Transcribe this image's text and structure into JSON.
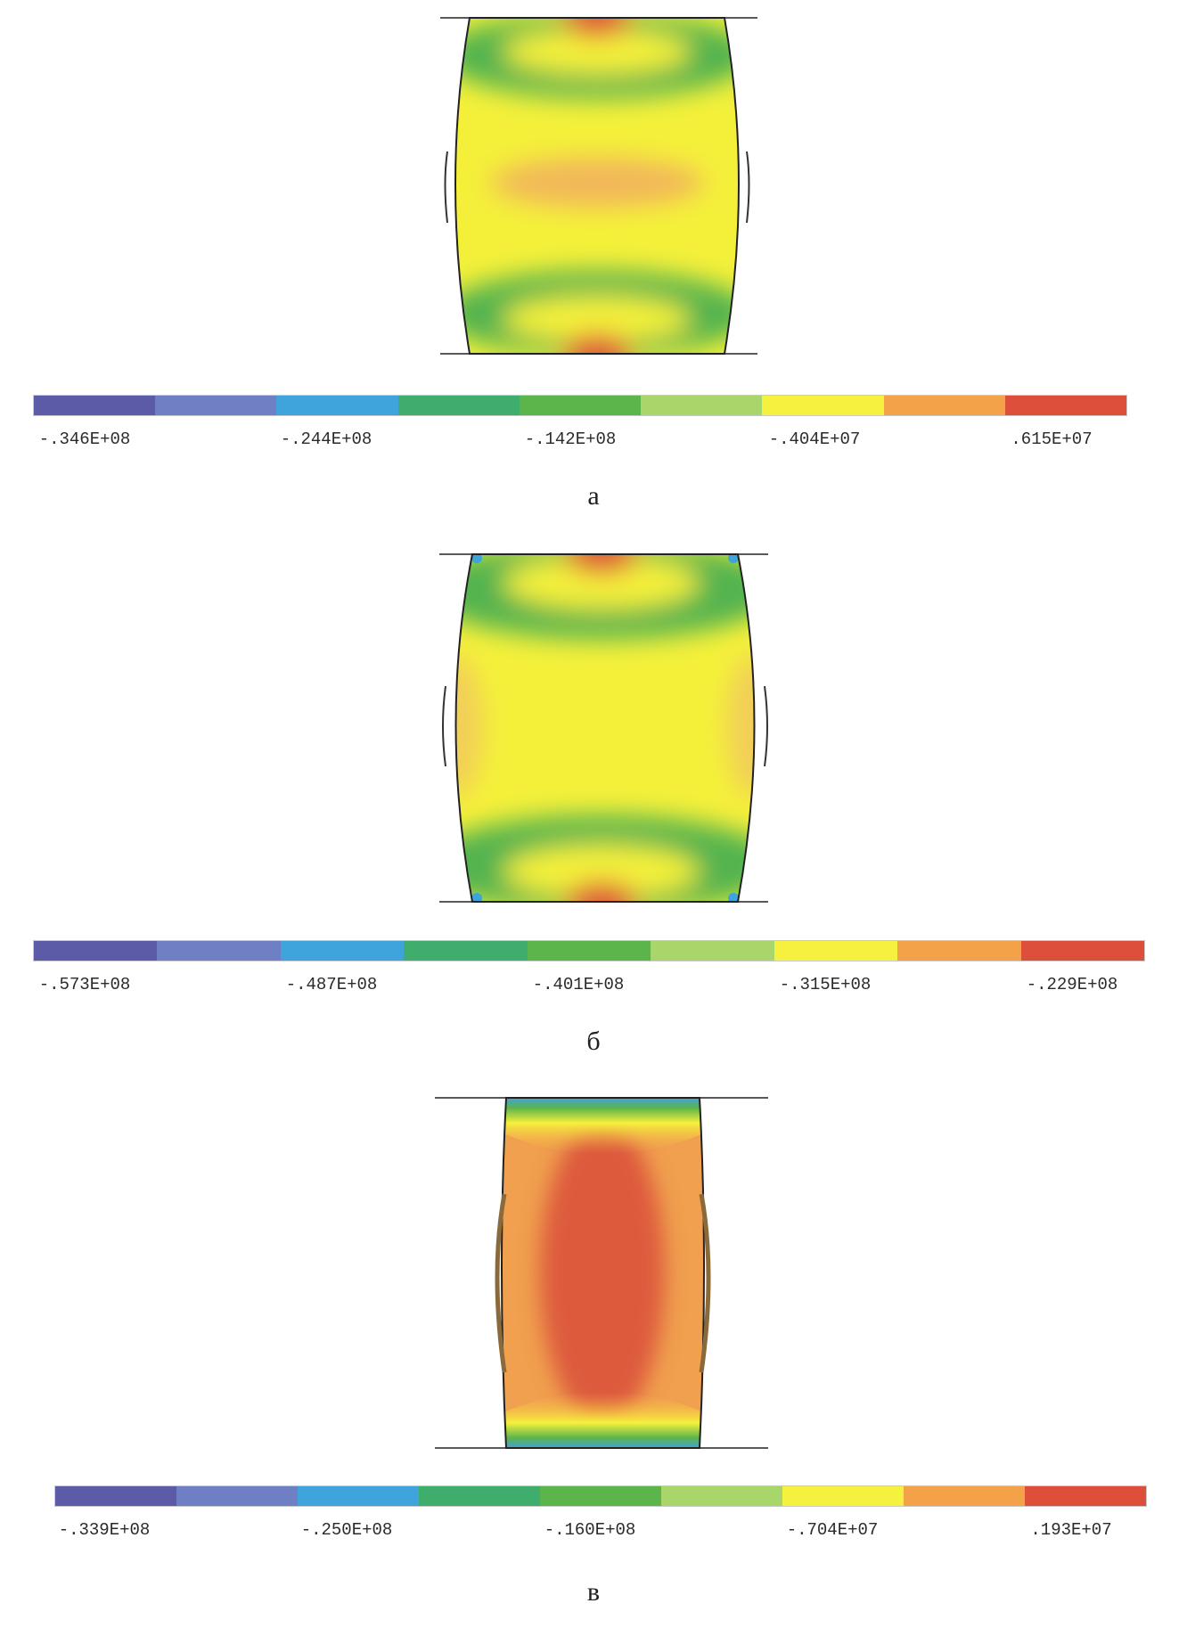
{
  "colorscale": [
    "#5b5ba8",
    "#6e7fc4",
    "#3fa3dc",
    "#3fae6c",
    "#5cb54a",
    "#a8d66a",
    "#f6f03e",
    "#f3a24a",
    "#dd4f3b"
  ],
  "panels": [
    {
      "caption": "а",
      "tick_labels": [
        "-.346E+08",
        "-.244E+08",
        "-.142E+08",
        "-.404E+07",
        ".615E+07"
      ]
    },
    {
      "caption": "б",
      "tick_labels": [
        "-.573E+08",
        "-.487E+08",
        "-.401E+08",
        "-.315E+08",
        "-.229E+08"
      ]
    },
    {
      "caption": "в",
      "tick_labels": [
        "-.339E+08",
        "-.250E+08",
        "-.160E+08",
        "-.704E+07",
        ".193E+07"
      ]
    }
  ]
}
